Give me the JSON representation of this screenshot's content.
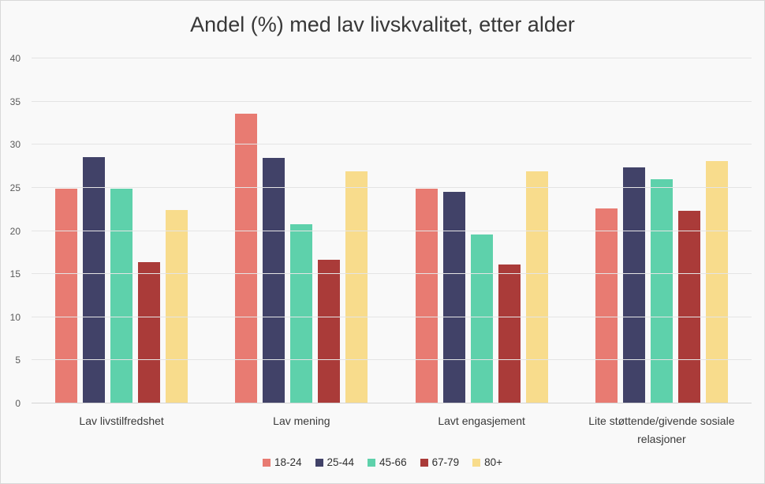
{
  "chart_data": {
    "type": "bar",
    "title": "Andel (%) med lav livskvalitet, etter alder",
    "categories": [
      "Lav livstilfredshet",
      "Lav mening",
      "Lavt engasjement",
      "Lite støttende/givende sosiale relasjoner"
    ],
    "series": [
      {
        "name": "18-24",
        "color": "#e87b72",
        "values": [
          24.9,
          33.6,
          24.9,
          22.6
        ]
      },
      {
        "name": "25-44",
        "color": "#414268",
        "values": [
          28.6,
          28.5,
          24.5,
          27.4
        ]
      },
      {
        "name": "45-66",
        "color": "#5ed1ab",
        "values": [
          24.9,
          20.8,
          19.6,
          26.0
        ]
      },
      {
        "name": "67-79",
        "color": "#aa3b39",
        "values": [
          16.4,
          16.7,
          16.1,
          22.3
        ]
      },
      {
        "name": "80+",
        "color": "#f8dc8c",
        "values": [
          22.4,
          26.9,
          26.9,
          28.1
        ]
      }
    ],
    "ylim": [
      0,
      40
    ],
    "ytick_interval": 5,
    "grid": true,
    "legend_position": "bottom",
    "background_color": "#f9f9f9",
    "gridline_color": "#e4e4e4"
  }
}
